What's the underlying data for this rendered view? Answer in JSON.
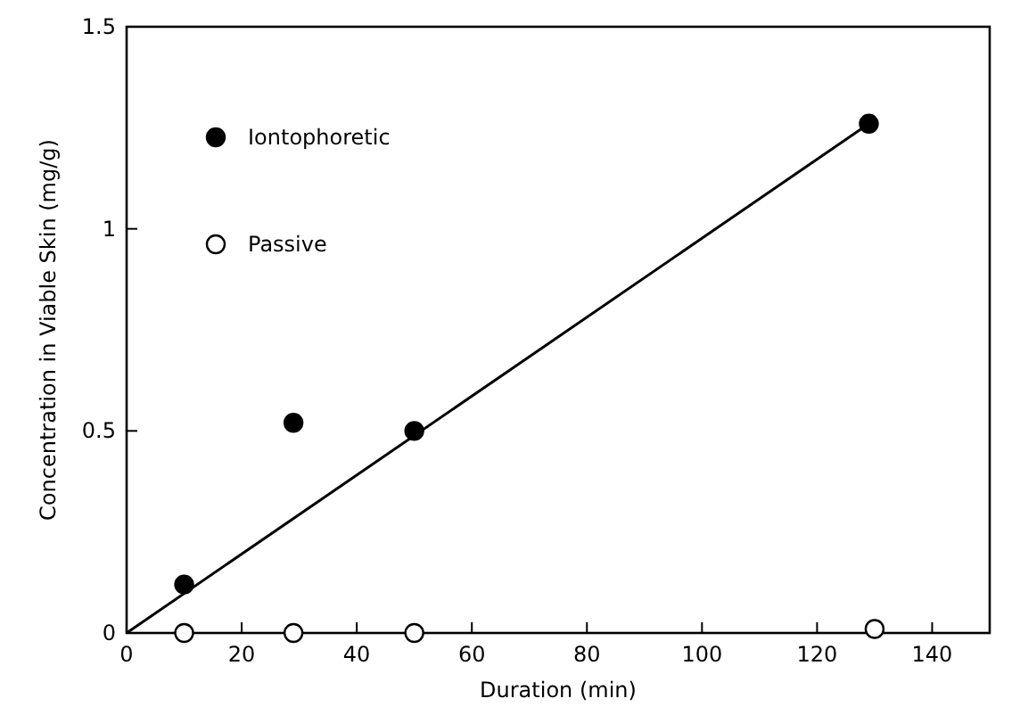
{
  "chart_data": {
    "type": "scatter",
    "xlabel": "Duration  (min)",
    "ylabel": "Concentration in Viable Skin (mg/g)",
    "xlim": [
      0,
      150
    ],
    "ylim": [
      0,
      1.5
    ],
    "xticks": [
      0,
      20,
      40,
      60,
      80,
      100,
      120,
      140
    ],
    "yticks": [
      0,
      0.5,
      1,
      1.5
    ],
    "marker": "circle",
    "legend": "top left",
    "grid": false,
    "series": [
      {
        "name": "Iontophoretic",
        "color": "#000000",
        "x": [
          10,
          29,
          50,
          129
        ],
        "values": [
          0.12,
          0.52,
          0.5,
          1.26
        ]
      },
      {
        "name": "Passive",
        "color": "#ffffff",
        "x": [
          10,
          29,
          50,
          130
        ],
        "values": [
          0,
          0,
          0,
          0.01
        ]
      },
      {
        "type": "line",
        "color": "#000000",
        "x": [
          0,
          129
        ],
        "values": [
          0,
          1.26
        ],
        "line_style": "solid",
        "marker": "none"
      }
    ]
  }
}
